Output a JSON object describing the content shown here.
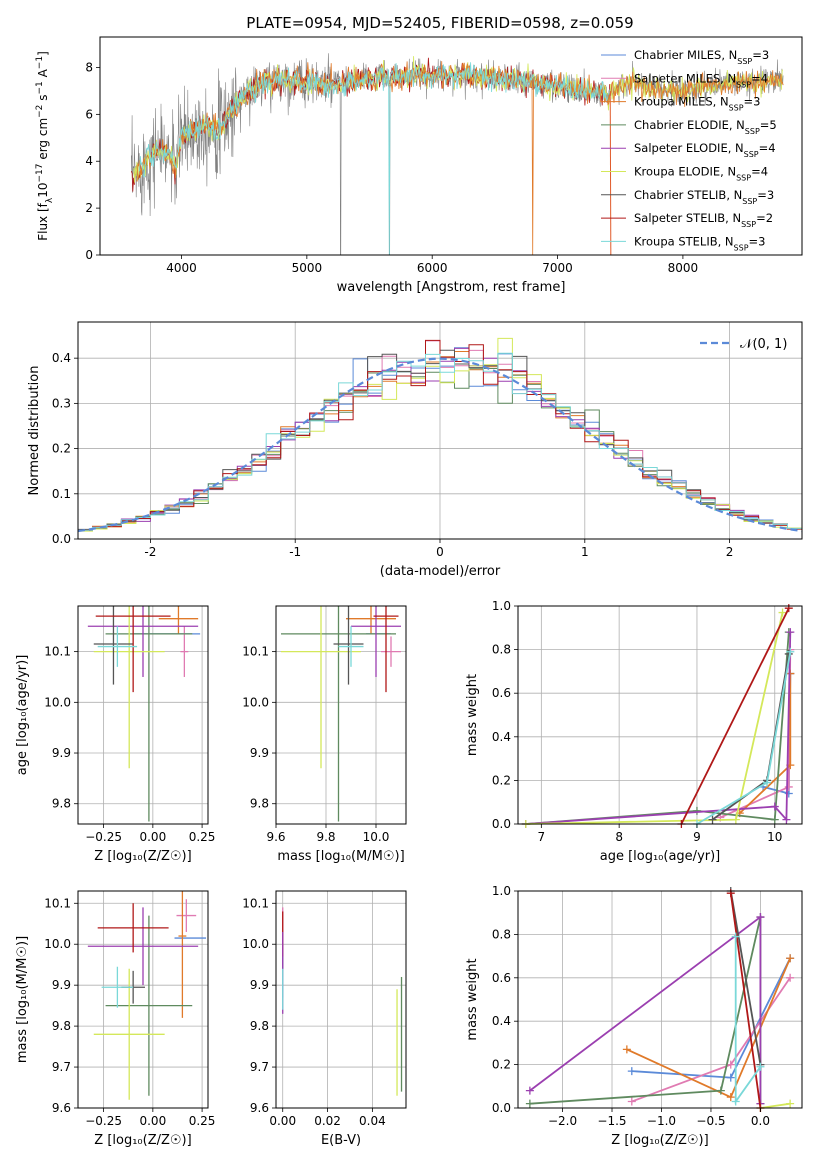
{
  "title": "PLATE=0954, MJD=52405, FIBERID=0598, z=0.059",
  "colors": {
    "chabrier_miles": "#5b8ad8",
    "salpeter_miles": "#e07bb2",
    "kroupa_miles": "#e07a2a",
    "chabrier_elodie": "#5f8a5f",
    "salpeter_elodie": "#9b3fb0",
    "kroupa_elodie": "#d4e85a",
    "chabrier_stelib": "#555555",
    "salpeter_stelib": "#b01818",
    "kroupa_stelib": "#7ad8d8",
    "data_grey": "#808080"
  },
  "legend_entries": [
    {
      "name": "Chabrier MILES, N",
      "sub": "SSP",
      "val": "=3",
      "key": "chabrier_miles"
    },
    {
      "name": "Salpeter MILES, N",
      "sub": "SSP",
      "val": "=4",
      "key": "salpeter_miles"
    },
    {
      "name": "Kroupa MILES, N",
      "sub": "SSP",
      "val": "=3",
      "key": "kroupa_miles"
    },
    {
      "name": "Chabrier ELODIE, N",
      "sub": "SSP",
      "val": "=5",
      "key": "chabrier_elodie"
    },
    {
      "name": "Salpeter ELODIE, N",
      "sub": "SSP",
      "val": "=4",
      "key": "salpeter_elodie"
    },
    {
      "name": "Kroupa ELODIE, N",
      "sub": "SSP",
      "val": "=4",
      "key": "kroupa_elodie"
    },
    {
      "name": "Chabrier STELIB, N",
      "sub": "SSP",
      "val": "=3",
      "key": "chabrier_stelib"
    },
    {
      "name": "Salpeter STELIB, N",
      "sub": "SSP",
      "val": "=2",
      "key": "salpeter_stelib"
    },
    {
      "name": "Kroupa STELIB, N",
      "sub": "SSP",
      "val": "=3",
      "key": "kroupa_stelib"
    }
  ],
  "chart_data": [
    {
      "id": "spectrum",
      "type": "line",
      "title": "PLATE=0954, MJD=52405, FIBERID=0598, z=0.059",
      "xlabel": "wavelength [Angstrom, rest frame]",
      "ylabel": "Flux [f_λ 10^-17 erg cm^-2 s^-1 A^-1]",
      "xlim": [
        3350,
        8950
      ],
      "ylim": [
        0,
        9.3
      ],
      "xticks": [
        4000,
        5000,
        6000,
        7000,
        8000
      ],
      "yticks": [
        0,
        2,
        4,
        6,
        8
      ],
      "continuum": [
        [
          3600,
          3.2
        ],
        [
          3700,
          3.9
        ],
        [
          3800,
          4.5
        ],
        [
          3900,
          4.3
        ],
        [
          3950,
          3.7
        ],
        [
          4000,
          5.0
        ],
        [
          4100,
          5.3
        ],
        [
          4200,
          5.6
        ],
        [
          4300,
          5.3
        ],
        [
          4400,
          6.2
        ],
        [
          4500,
          6.8
        ],
        [
          4600,
          7.2
        ],
        [
          4700,
          7.4
        ],
        [
          4800,
          7.5
        ],
        [
          4900,
          7.4
        ],
        [
          5000,
          7.4
        ],
        [
          5100,
          7.3
        ],
        [
          5200,
          7.3
        ],
        [
          5300,
          7.4
        ],
        [
          5400,
          7.5
        ],
        [
          5500,
          7.5
        ],
        [
          5600,
          7.6
        ],
        [
          5700,
          7.6
        ],
        [
          5800,
          7.6
        ],
        [
          5900,
          7.7
        ],
        [
          6000,
          7.6
        ],
        [
          6200,
          7.7
        ],
        [
          6400,
          7.6
        ],
        [
          6600,
          7.5
        ],
        [
          6800,
          7.4
        ],
        [
          7000,
          7.2
        ],
        [
          7200,
          7.0
        ],
        [
          7400,
          6.9
        ],
        [
          7500,
          7.1
        ],
        [
          7600,
          7.4
        ],
        [
          7800,
          7.0
        ],
        [
          8000,
          7.0
        ],
        [
          8200,
          7.2
        ],
        [
          8400,
          7.3
        ],
        [
          8600,
          7.4
        ],
        [
          8800,
          7.5
        ]
      ],
      "legend_loc": "upper right"
    },
    {
      "id": "residuals",
      "type": "step",
      "xlabel": "(data-model)/error",
      "ylabel": "Normed distribution",
      "xlim": [
        -2.5,
        2.5
      ],
      "ylim": [
        0,
        0.48
      ],
      "xticks": [
        -2,
        -1,
        0,
        1,
        2
      ],
      "yticks": [
        0.0,
        0.1,
        0.2,
        0.3,
        0.4
      ],
      "normal_label": "𝒩(0, 1)",
      "bin_width": 0.1,
      "legend_loc": "upper right"
    },
    {
      "id": "age_vs_Z",
      "type": "errorbar",
      "xlabel": "Z [log₁₀(Z/Z☉)]",
      "ylabel": "age  [log₁₀(age/yr)]",
      "xlim": [
        -0.38,
        0.28
      ],
      "ylim": [
        9.76,
        10.19
      ],
      "xticks": [
        -0.25,
        0.0,
        0.25
      ],
      "xtick_labels": [
        "−0.25",
        "0.00",
        "0.25"
      ],
      "yticks": [
        9.8,
        9.9,
        10.0,
        10.1
      ],
      "points": [
        {
          "key": "chabrier_miles",
          "x": 0.07,
          "y": 10.135,
          "xerr": 0.17,
          "yerr": 0.0
        },
        {
          "key": "salpeter_miles",
          "x": 0.16,
          "y": 10.1,
          "xerr": 0.02,
          "yerr": 0.05
        },
        {
          "key": "kroupa_miles",
          "x": 0.13,
          "y": 10.165,
          "xerr": 0.1,
          "yerr": 0.03
        },
        {
          "key": "chabrier_elodie",
          "x": -0.02,
          "y": 10.135,
          "xerr": 0.22,
          "yerr": 0.37
        },
        {
          "key": "salpeter_elodie",
          "x": -0.05,
          "y": 10.15,
          "xerr": 0.28,
          "yerr": 0.1
        },
        {
          "key": "kroupa_elodie",
          "x": -0.12,
          "y": 10.1,
          "xerr": 0.18,
          "yerr": 0.23
        },
        {
          "key": "chabrier_stelib",
          "x": -0.2,
          "y": 10.115,
          "xerr": 0.1,
          "yerr": 0.08
        },
        {
          "key": "salpeter_stelib",
          "x": -0.1,
          "y": 10.17,
          "xerr": 0.19,
          "yerr": 0.15
        },
        {
          "key": "kroupa_stelib",
          "x": -0.18,
          "y": 10.11,
          "xerr": 0.1,
          "yerr": 0.04
        }
      ]
    },
    {
      "id": "age_vs_mass",
      "type": "errorbar",
      "xlabel": "mass [log₁₀(M/M☉)]",
      "ylabel": "",
      "xlim": [
        9.6,
        10.12
      ],
      "ylim": [
        9.76,
        10.19
      ],
      "xticks": [
        9.6,
        9.8,
        10.0
      ],
      "xtick_labels": [
        "9.6",
        "9.8",
        "10.0"
      ],
      "yticks": [
        9.8,
        9.9,
        10.0,
        10.1
      ],
      "points": [
        {
          "key": "chabrier_miles",
          "x": 10.01,
          "y": 10.135,
          "xerr": 0.05,
          "yerr": 0.0
        },
        {
          "key": "salpeter_miles",
          "x": 10.06,
          "y": 10.1,
          "xerr": 0.04,
          "yerr": 0.03
        },
        {
          "key": "kroupa_miles",
          "x": 9.98,
          "y": 10.165,
          "xerr": 0.1,
          "yerr": 0.03
        },
        {
          "key": "chabrier_elodie",
          "x": 9.85,
          "y": 10.135,
          "xerr": 0.23,
          "yerr": 0.37
        },
        {
          "key": "salpeter_elodie",
          "x": 10.0,
          "y": 10.15,
          "xerr": 0.1,
          "yerr": 0.1
        },
        {
          "key": "kroupa_elodie",
          "x": 9.78,
          "y": 10.1,
          "xerr": 0.16,
          "yerr": 0.23
        },
        {
          "key": "chabrier_stelib",
          "x": 9.89,
          "y": 10.115,
          "xerr": 0.06,
          "yerr": 0.08
        },
        {
          "key": "salpeter_stelib",
          "x": 10.04,
          "y": 10.17,
          "xerr": 0.05,
          "yerr": 0.15
        },
        {
          "key": "kroupa_stelib",
          "x": 9.9,
          "y": 10.11,
          "xerr": 0.05,
          "yerr": 0.04
        }
      ]
    },
    {
      "id": "weight_vs_age",
      "type": "line",
      "xlabel": "age  [log₁₀(age/yr)]",
      "ylabel": "mass weight",
      "xlim": [
        6.7,
        10.35
      ],
      "ylim": [
        0,
        1.0
      ],
      "xticks": [
        7,
        8,
        9,
        10
      ],
      "yticks": [
        0.0,
        0.2,
        0.4,
        0.6,
        0.8,
        1.0
      ],
      "series": [
        {
          "key": "chabrier_miles",
          "x": [
            9.85,
            10.18,
            10.2
          ],
          "y": [
            0.17,
            0.14,
            0.69
          ]
        },
        {
          "key": "salpeter_miles",
          "x": [
            9.3,
            10.18,
            10.2
          ],
          "y": [
            0.03,
            0.17,
            0.8
          ]
        },
        {
          "key": "kroupa_miles",
          "x": [
            9.55,
            10.2,
            10.2
          ],
          "y": [
            0.05,
            0.27,
            0.69
          ]
        },
        {
          "key": "chabrier_elodie",
          "x": [
            6.8,
            9.0,
            10.0,
            10.18
          ],
          "y": [
            0.0,
            0.06,
            0.02,
            0.88
          ]
        },
        {
          "key": "salpeter_elodie",
          "x": [
            6.8,
            10.0,
            10.15,
            10.2
          ],
          "y": [
            0.0,
            0.08,
            0.02,
            0.88
          ]
        },
        {
          "key": "kroupa_elodie",
          "x": [
            6.8,
            9.5,
            10.1
          ],
          "y": [
            0.0,
            0.02,
            0.97
          ]
        },
        {
          "key": "chabrier_stelib",
          "x": [
            9.2,
            9.9,
            10.18
          ],
          "y": [
            0.02,
            0.2,
            0.78
          ]
        },
        {
          "key": "salpeter_stelib",
          "x": [
            8.8,
            10.18
          ],
          "y": [
            0.0,
            0.99
          ]
        },
        {
          "key": "kroupa_stelib",
          "x": [
            9.0,
            9.9,
            10.2
          ],
          "y": [
            0.0,
            0.19,
            0.79
          ]
        }
      ]
    },
    {
      "id": "mass_vs_Z",
      "type": "errorbar",
      "xlabel": "Z [log₁₀(Z/Z☉)]",
      "ylabel": "mass [log₁₀(M/M☉)]",
      "xlim": [
        -0.38,
        0.28
      ],
      "ylim": [
        9.6,
        10.13
      ],
      "xticks": [
        -0.25,
        0.0,
        0.25
      ],
      "xtick_labels": [
        "−0.25",
        "0.00",
        "0.25"
      ],
      "yticks": [
        9.6,
        9.7,
        9.8,
        9.9,
        10.0,
        10.1
      ],
      "points": [
        {
          "key": "chabrier_miles",
          "x": 0.19,
          "y": 10.015,
          "xerr": 0.08,
          "yerr": 0.0
        },
        {
          "key": "salpeter_miles",
          "x": 0.17,
          "y": 10.07,
          "xerr": 0.05,
          "yerr": 0.04
        },
        {
          "key": "kroupa_miles",
          "x": 0.15,
          "y": 10.02,
          "xerr": 0.02,
          "yerr": 0.2
        },
        {
          "key": "chabrier_elodie",
          "x": -0.02,
          "y": 9.85,
          "xerr": 0.22,
          "yerr": 0.22
        },
        {
          "key": "salpeter_elodie",
          "x": -0.05,
          "y": 9.995,
          "xerr": 0.28,
          "yerr": 0.095
        },
        {
          "key": "kroupa_elodie",
          "x": -0.12,
          "y": 9.78,
          "xerr": 0.18,
          "yerr": 0.16
        },
        {
          "key": "chabrier_stelib",
          "x": -0.1,
          "y": 9.895,
          "xerr": 0.06,
          "yerr": 0.04
        },
        {
          "key": "salpeter_stelib",
          "x": -0.1,
          "y": 10.04,
          "xerr": 0.18,
          "yerr": 0.06
        },
        {
          "key": "kroupa_stelib",
          "x": -0.18,
          "y": 9.895,
          "xerr": 0.08,
          "yerr": 0.05
        }
      ]
    },
    {
      "id": "mass_vs_EBV",
      "type": "errorbar",
      "xlabel": "E(B-V)",
      "ylabel": "",
      "xlim": [
        -0.003,
        0.055
      ],
      "ylim": [
        9.6,
        10.13
      ],
      "xticks": [
        0.0,
        0.02,
        0.04
      ],
      "xtick_labels": [
        "0.00",
        "0.02",
        "0.04"
      ],
      "yticks": [
        9.6,
        9.7,
        9.8,
        9.9,
        10.0,
        10.1
      ],
      "points": [
        {
          "key": "salpeter_miles",
          "x": 0.0,
          "y": 10.02,
          "xerr": 0.0,
          "yerr": 0.07
        },
        {
          "key": "salpeter_stelib",
          "x": 0.0,
          "y": 10.0,
          "xerr": 0.0,
          "yerr": 0.08
        },
        {
          "key": "chabrier_miles",
          "x": 0.0,
          "y": 9.92,
          "xerr": 0.0,
          "yerr": 0.05
        },
        {
          "key": "salpeter_elodie",
          "x": 0.0,
          "y": 9.93,
          "xerr": 0.0,
          "yerr": 0.1
        },
        {
          "key": "kroupa_stelib",
          "x": 0.0,
          "y": 9.89,
          "xerr": 0.0,
          "yerr": 0.05
        },
        {
          "key": "kroupa_elodie",
          "x": 0.051,
          "y": 9.76,
          "xerr": 0.0,
          "yerr": 0.13
        },
        {
          "key": "chabrier_elodie",
          "x": 0.053,
          "y": 9.78,
          "xerr": 0.0,
          "yerr": 0.14
        }
      ]
    },
    {
      "id": "weight_vs_Z",
      "type": "line",
      "xlabel": "Z [log₁₀(Z/Z☉)]",
      "ylabel": "mass weight",
      "xlim": [
        -2.45,
        0.42
      ],
      "ylim": [
        0,
        1.0
      ],
      "xticks": [
        -2.0,
        -1.5,
        -1.0,
        -0.5,
        0.0
      ],
      "xtick_labels": [
        "−2.0",
        "−1.5",
        "−1.0",
        "−0.5",
        "0.0"
      ],
      "yticks": [
        0.0,
        0.2,
        0.4,
        0.6,
        0.8,
        1.0
      ],
      "series": [
        {
          "key": "chabrier_miles",
          "x": [
            -1.3,
            -0.3,
            0.3
          ],
          "y": [
            0.17,
            0.14,
            0.69
          ]
        },
        {
          "key": "salpeter_miles",
          "x": [
            -1.3,
            -0.3,
            0.3
          ],
          "y": [
            0.03,
            0.2,
            0.6
          ]
        },
        {
          "key": "kroupa_miles",
          "x": [
            -1.35,
            -0.3,
            0.3
          ],
          "y": [
            0.27,
            0.05,
            0.69
          ]
        },
        {
          "key": "chabrier_elodie",
          "x": [
            -2.33,
            -0.4,
            0.0,
            0.0
          ],
          "y": [
            0.02,
            0.08,
            0.88,
            0.02
          ]
        },
        {
          "key": "salpeter_elodie",
          "x": [
            -2.33,
            0.0,
            0.0
          ],
          "y": [
            0.08,
            0.88,
            0.02
          ]
        },
        {
          "key": "kroupa_elodie",
          "x": [
            0.0,
            0.3
          ],
          "y": [
            0.0,
            0.02
          ]
        },
        {
          "key": "chabrier_stelib",
          "x": [
            -0.3,
            0.0
          ],
          "y": [
            1.0,
            0.2
          ]
        },
        {
          "key": "salpeter_stelib",
          "x": [
            -0.3,
            0.0
          ],
          "y": [
            0.99,
            0.0
          ]
        },
        {
          "key": "kroupa_stelib",
          "x": [
            -0.25,
            -0.25,
            0.0
          ],
          "y": [
            0.79,
            0.03,
            0.19
          ]
        }
      ]
    }
  ]
}
